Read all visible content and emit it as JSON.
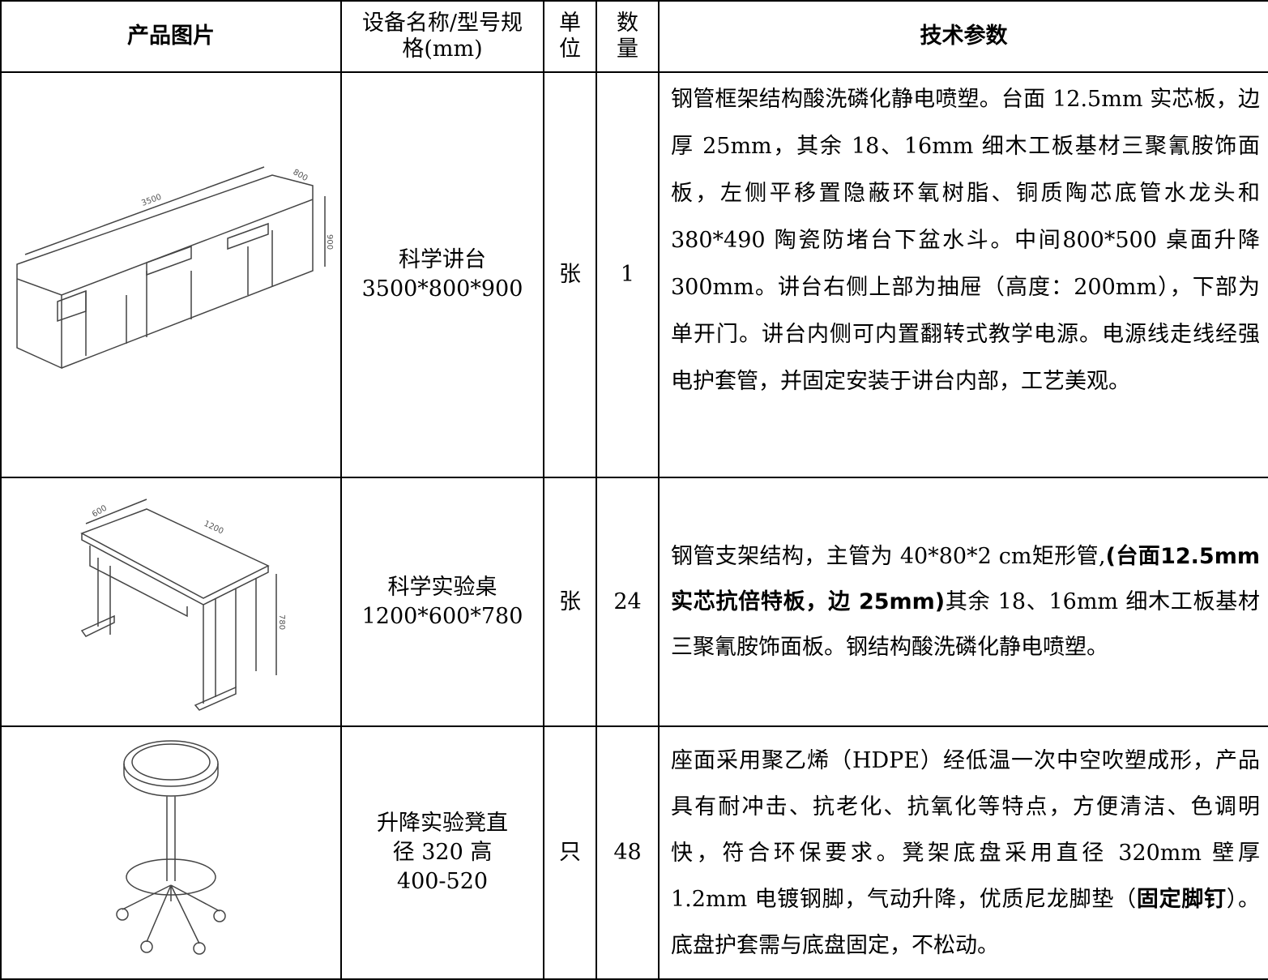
{
  "header": {
    "image": "产品图片",
    "name": "设备名称/型号规格(mm)",
    "unit": "单位",
    "qty": "数量",
    "params": "技术参数"
  },
  "table": {
    "rows": [
      {
        "name": [
          "科学讲台",
          "3500*800*900"
        ],
        "unit": "张",
        "qty": 1,
        "dims": [
          "3500",
          "800",
          "900"
        ],
        "params": [
          {
            "text": "钢管框架结构酸洗磷化静电喷塑。台面 12.5mm 实芯板，边厚 25mm，其余 18、16mm 细木工板基材三聚氰胺饰面板，左侧平移置隐蔽环氧树脂、铜质陶芯底管水龙头和 380*490 陶瓷防堵台下盆水斗。中间800*500 桌面升降 300mm。讲台右侧上部为抽屉（高度：200mm），下部为单开门。讲台内侧可内置翻转式教学电源。电源线走线经强电护套管，并固定安装于讲台内部，工艺美观。",
            "bold": false
          }
        ]
      },
      {
        "name": [
          "科学实验桌",
          "1200*600*780"
        ],
        "unit": "张",
        "qty": 24,
        "dims": [
          "600",
          "1200",
          "780"
        ],
        "params": [
          {
            "text": "钢管支架结构，主管为 40*80*2 cm矩形管,",
            "bold": false
          },
          {
            "text": "(台面12.5mm 实芯抗倍特板，边 25mm)",
            "bold": true
          },
          {
            "text": "其余 18、16mm 细木工板基材三聚氰胺饰面板。钢结构酸洗磷化静电喷塑。",
            "bold": false
          }
        ]
      },
      {
        "name": [
          "升降实验凳直",
          "径 320 高",
          "400-520"
        ],
        "unit": "只",
        "qty": 48,
        "dims": [],
        "params": [
          {
            "text": "座面采用聚乙烯（HDPE）经低温一次中空吹塑成形，产品具有耐冲击、抗老化、抗氧化等特点，方便清洁、色调明快，符合环保要求。凳架底盘采用直径 320mm 壁厚 1.2mm 电镀钢脚，气动升降，优质尼龙脚垫（",
            "bold": false
          },
          {
            "text": "固定脚钉",
            "bold": true
          },
          {
            "text": "）。底盘护套需与底盘固定，不松动。",
            "bold": false
          }
        ]
      }
    ]
  }
}
